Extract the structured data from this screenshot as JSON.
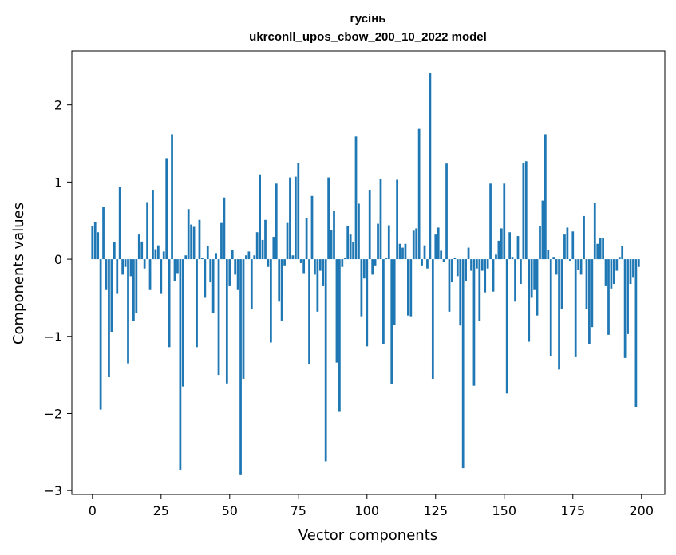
{
  "chart_data": {
    "type": "bar",
    "title": "гусінь",
    "subtitle": "ukrconll_upos_cbow_200_10_2022 model",
    "xlabel": "Vector components",
    "ylabel": "Components values",
    "xlim": [
      -7.5,
      208.5
    ],
    "ylim": [
      -3.05,
      2.7
    ],
    "xticks": [
      0,
      25,
      50,
      75,
      100,
      125,
      150,
      175,
      200
    ],
    "yticks": [
      -3,
      -2,
      -1,
      0,
      1,
      2
    ],
    "xtick_labels": [
      "0",
      "25",
      "50",
      "75",
      "100",
      "125",
      "150",
      "175",
      "200"
    ],
    "ytick_labels": [
      "−3",
      "−2",
      "−1",
      "0",
      "1",
      "2"
    ],
    "grid": false,
    "legend": "none",
    "bar_color": "#1f77b4",
    "x": [
      0,
      1,
      2,
      3,
      4,
      5,
      6,
      7,
      8,
      9,
      10,
      11,
      12,
      13,
      14,
      15,
      16,
      17,
      18,
      19,
      20,
      21,
      22,
      23,
      24,
      25,
      26,
      27,
      28,
      29,
      30,
      31,
      32,
      33,
      34,
      35,
      36,
      37,
      38,
      39,
      40,
      41,
      42,
      43,
      44,
      45,
      46,
      47,
      48,
      49,
      50,
      51,
      52,
      53,
      54,
      55,
      56,
      57,
      58,
      59,
      60,
      61,
      62,
      63,
      64,
      65,
      66,
      67,
      68,
      69,
      70,
      71,
      72,
      73,
      74,
      75,
      76,
      77,
      78,
      79,
      80,
      81,
      82,
      83,
      84,
      85,
      86,
      87,
      88,
      89,
      90,
      91,
      92,
      93,
      94,
      95,
      96,
      97,
      98,
      99,
      100,
      101,
      102,
      103,
      104,
      105,
      106,
      107,
      108,
      109,
      110,
      111,
      112,
      113,
      114,
      115,
      116,
      117,
      118,
      119,
      120,
      121,
      122,
      123,
      124,
      125,
      126,
      127,
      128,
      129,
      130,
      131,
      132,
      133,
      134,
      135,
      136,
      137,
      138,
      139,
      140,
      141,
      142,
      143,
      144,
      145,
      146,
      147,
      148,
      149,
      150,
      151,
      152,
      153,
      154,
      155,
      156,
      157,
      158,
      159,
      160,
      161,
      162,
      163,
      164,
      165,
      166,
      167,
      168,
      169,
      170,
      171,
      172,
      173,
      174,
      175,
      176,
      177,
      178,
      179,
      180,
      181,
      182,
      183,
      184,
      185,
      186,
      187,
      188,
      189,
      190,
      191,
      192,
      193,
      194,
      195,
      196,
      197,
      198,
      199
    ],
    "values": [
      0.43,
      0.48,
      0.35,
      -1.95,
      0.68,
      -0.4,
      -1.53,
      -0.94,
      0.22,
      -0.45,
      0.94,
      -0.2,
      -0.1,
      -1.35,
      -0.22,
      -0.8,
      -0.7,
      0.32,
      0.23,
      -0.12,
      0.74,
      -0.4,
      0.9,
      0.13,
      0.18,
      -0.45,
      0.1,
      1.31,
      -1.14,
      1.62,
      -0.28,
      -0.18,
      -2.74,
      -1.65,
      0.05,
      0.65,
      0.45,
      0.42,
      -1.14,
      0.51,
      0.02,
      -0.5,
      0.17,
      -0.3,
      -0.7,
      0.08,
      -1.5,
      0.47,
      0.8,
      -1.61,
      -0.35,
      0.12,
      -0.2,
      -0.4,
      -2.8,
      -1.55,
      0.05,
      0.1,
      -0.65,
      0.05,
      0.35,
      1.1,
      0.25,
      0.51,
      -0.1,
      -1.08,
      0.29,
      0.98,
      -0.55,
      -0.8,
      -0.08,
      0.47,
      1.06,
      0.05,
      1.07,
      1.25,
      -0.05,
      -0.18,
      0.53,
      -1.36,
      0.82,
      -0.2,
      -0.68,
      -0.15,
      -0.35,
      -2.62,
      1.06,
      0.38,
      0.63,
      -1.34,
      -1.98,
      -0.1,
      0.02,
      0.43,
      0.32,
      0.22,
      1.59,
      0.72,
      -0.74,
      -0.25,
      -1.13,
      0.9,
      -0.2,
      -0.08,
      0.46,
      1.04,
      -1.1,
      0.02,
      0.44,
      -1.62,
      -0.85,
      1.03,
      0.2,
      0.15,
      0.2,
      -0.73,
      -0.74,
      0.37,
      0.4,
      1.69,
      -0.08,
      0.18,
      -0.12,
      2.42,
      -1.55,
      0.32,
      0.41,
      0.11,
      -0.04,
      1.24,
      -0.68,
      -0.3,
      0.02,
      -0.22,
      -0.86,
      -2.71,
      -0.28,
      0.15,
      -0.15,
      -1.64,
      -0.12,
      -0.8,
      -0.15,
      -0.43,
      -0.12,
      0.98,
      -0.42,
      0.06,
      0.24,
      0.4,
      0.98,
      -1.74,
      0.35,
      0.03,
      -0.55,
      0.3,
      -0.32,
      1.25,
      1.27,
      -1.07,
      -0.5,
      -0.4,
      -0.73,
      0.43,
      0.76,
      1.62,
      0.12,
      -1.26,
      0.03,
      -0.2,
      -1.43,
      -0.65,
      0.32,
      0.41,
      -0.02,
      0.36,
      -1.27,
      -0.14,
      -0.2,
      0.56,
      -0.65,
      -1.1,
      -0.88,
      0.73,
      0.2,
      0.27,
      0.28,
      -0.35,
      -0.98,
      -0.38,
      -0.32,
      -0.15,
      0.03,
      0.17,
      -1.28,
      -0.97,
      -0.32,
      -0.23,
      -1.92,
      -0.1
    ]
  }
}
